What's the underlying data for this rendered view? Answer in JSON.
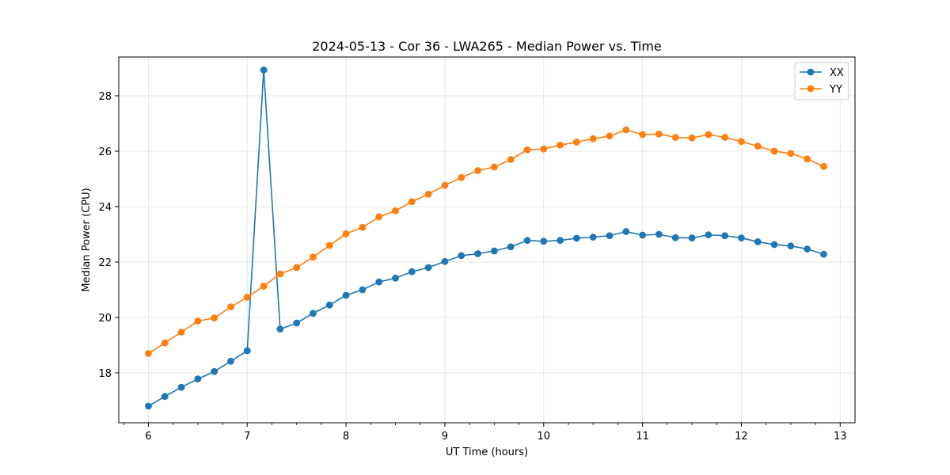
{
  "chart_data": {
    "type": "line",
    "title": "2024-05-13 - Cor 36 - LWA265 - Median Power vs. Time",
    "xlabel": "UT Time (hours)",
    "ylabel": "Median Power (CPU)",
    "xlim": [
      5.7,
      13.15
    ],
    "ylim": [
      16.2,
      29.4
    ],
    "x_ticks": [
      6,
      7,
      8,
      9,
      10,
      11,
      12,
      13
    ],
    "x_tick_labels": [
      "6",
      "7",
      "8",
      "9",
      "10",
      "11",
      "12",
      "13"
    ],
    "x_minor_step": 0.25,
    "y_ticks": [
      18,
      20,
      22,
      24,
      26,
      28
    ],
    "y_tick_labels": [
      "18",
      "20",
      "22",
      "24",
      "26",
      "28"
    ],
    "grid": true,
    "legend_position": "top-right",
    "x": [
      6.0,
      6.1667,
      6.3333,
      6.5,
      6.6667,
      6.8333,
      7.0,
      7.1667,
      7.3333,
      7.5,
      7.6667,
      7.8333,
      8.0,
      8.1667,
      8.3333,
      8.5,
      8.6667,
      8.8333,
      9.0,
      9.1667,
      9.3333,
      9.5,
      9.6667,
      9.8333,
      10.0,
      10.1667,
      10.3333,
      10.5,
      10.6667,
      10.8333,
      11.0,
      11.1667,
      11.3333,
      11.5,
      11.6667,
      11.8333,
      12.0,
      12.1667,
      12.3333,
      12.5,
      12.6667,
      12.8333
    ],
    "series": [
      {
        "name": "XX",
        "color": "#1f77b4",
        "values": [
          16.8,
          17.15,
          17.48,
          17.78,
          18.05,
          18.42,
          18.8,
          28.93,
          19.58,
          19.8,
          20.15,
          20.45,
          20.8,
          21.0,
          21.28,
          21.42,
          21.65,
          21.8,
          22.02,
          22.23,
          22.3,
          22.4,
          22.55,
          22.78,
          22.75,
          22.78,
          22.86,
          22.9,
          22.95,
          23.1,
          22.97,
          23.0,
          22.88,
          22.87,
          22.98,
          22.95,
          22.87,
          22.73,
          22.63,
          22.58,
          22.47,
          22.28
        ]
      },
      {
        "name": "YY",
        "color": "#ff7f0e",
        "values": [
          18.7,
          19.08,
          19.47,
          19.87,
          19.98,
          20.38,
          20.73,
          21.13,
          21.57,
          21.8,
          22.18,
          22.6,
          23.02,
          23.25,
          23.63,
          23.85,
          24.18,
          24.45,
          24.77,
          25.05,
          25.3,
          25.43,
          25.7,
          26.05,
          26.08,
          26.22,
          26.33,
          26.45,
          26.55,
          26.77,
          26.6,
          26.62,
          26.5,
          26.48,
          26.6,
          26.5,
          26.35,
          26.18,
          26.0,
          25.92,
          25.72,
          25.45
        ]
      }
    ]
  }
}
